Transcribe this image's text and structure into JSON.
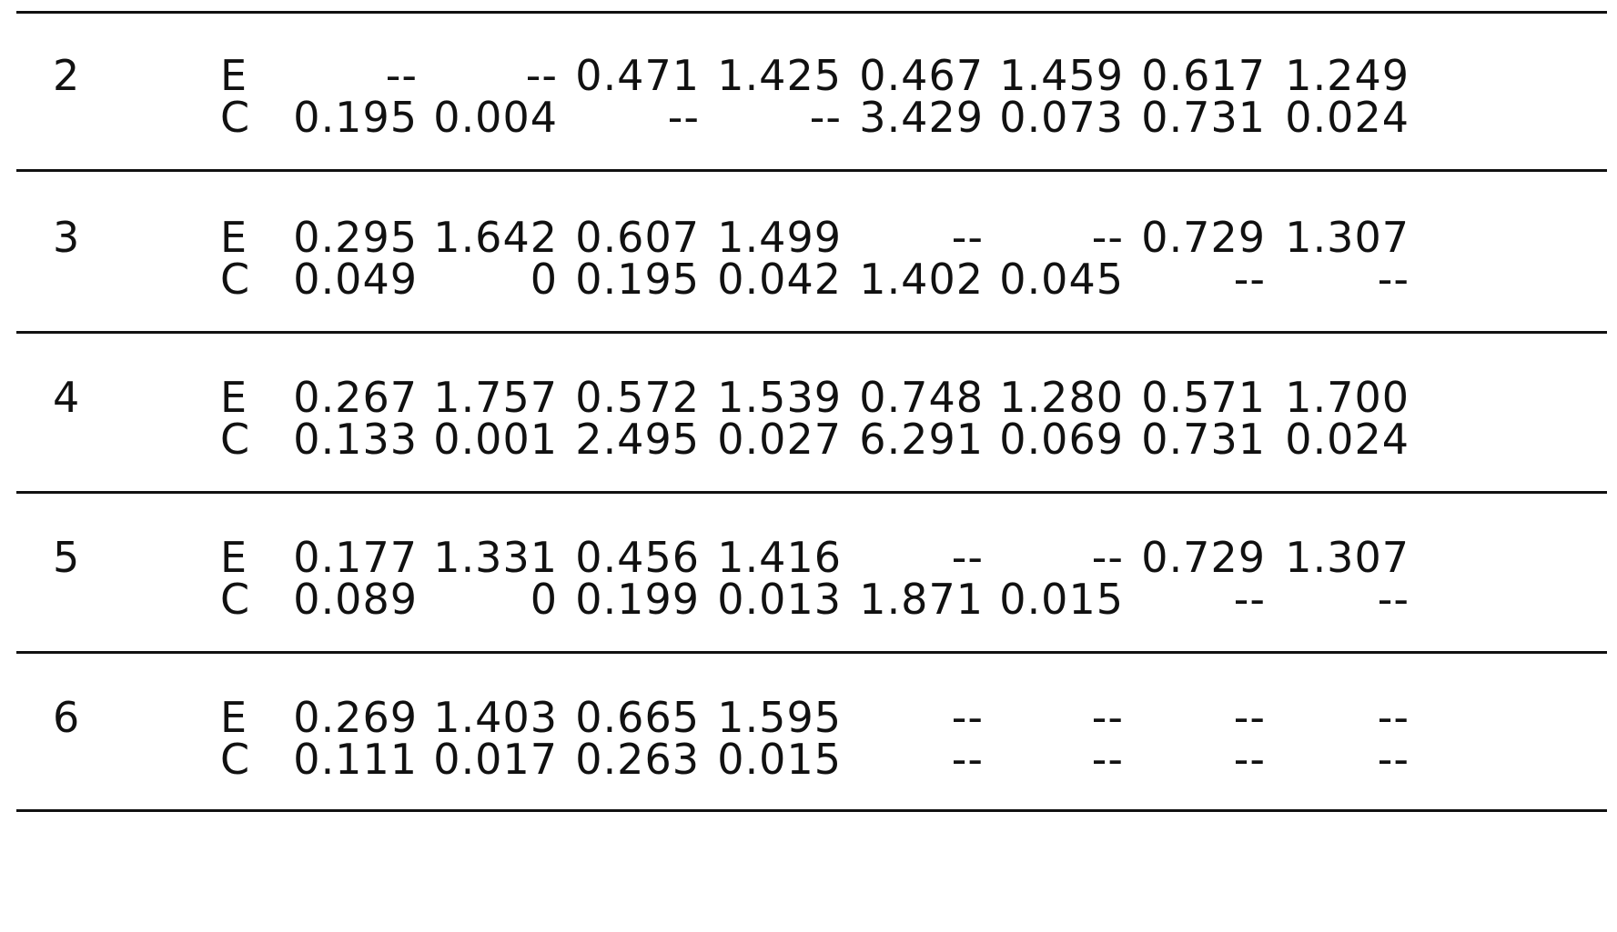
{
  "rows": [
    {
      "block": "2",
      "e_label": "E",
      "c_label": "C",
      "e_values": [
        "--",
        "--",
        "0.471",
        "1.425",
        "0.467",
        "1.459",
        "0.617",
        "1.249"
      ],
      "c_values": [
        "0.195",
        "0.004",
        "--",
        "--",
        "3.429",
        "0.073",
        "0.731",
        "0.024"
      ]
    },
    {
      "block": "3",
      "e_label": "E",
      "c_label": "C",
      "e_values": [
        "0.295",
        "1.642",
        "0.607",
        "1.499",
        "--",
        "--",
        "0.729",
        "1.307"
      ],
      "c_values": [
        "0.049",
        "0",
        "0.195",
        "0.042",
        "1.402",
        "0.045",
        "--",
        "--"
      ]
    },
    {
      "block": "4",
      "e_label": "E",
      "c_label": "C",
      "e_values": [
        "0.267",
        "1.757",
        "0.572",
        "1.539",
        "0.748",
        "1.280",
        "0.571",
        "1.700"
      ],
      "c_values": [
        "0.133",
        "0.001",
        "2.495",
        "0.027",
        "6.291",
        "0.069",
        "0.731",
        "0.024"
      ]
    },
    {
      "block": "5",
      "e_label": "E",
      "c_label": "C",
      "e_values": [
        "0.177",
        "1.331",
        "0.456",
        "1.416",
        "--",
        "--",
        "0.729",
        "1.307"
      ],
      "c_values": [
        "0.089",
        "0",
        "0.199",
        "0.013",
        "1.871",
        "0.015",
        "--",
        "--"
      ]
    },
    {
      "block": "6",
      "e_label": "E",
      "c_label": "C",
      "e_values": [
        "0.269",
        "1.403",
        "0.665",
        "1.595",
        "--",
        "--",
        "--",
        "--"
      ],
      "c_values": [
        "0.111",
        "0.017",
        "0.263",
        "0.015",
        "--",
        "--",
        "--",
        "--"
      ]
    }
  ]
}
